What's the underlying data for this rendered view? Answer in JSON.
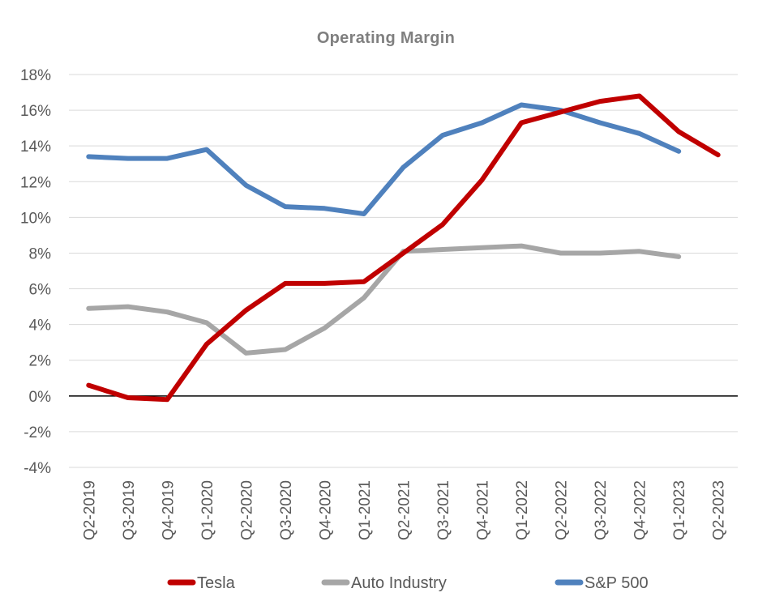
{
  "chart_data": {
    "type": "line",
    "title": "Operating Margin",
    "xlabel": "",
    "ylabel": "",
    "categories": [
      "Q2-2019",
      "Q3-2019",
      "Q4-2019",
      "Q1-2020",
      "Q2-2020",
      "Q3-2020",
      "Q4-2020",
      "Q1-2021",
      "Q2-2021",
      "Q3-2021",
      "Q4-2021",
      "Q1-2022",
      "Q2-2022",
      "Q3-2022",
      "Q4-2022",
      "Q1-2023",
      "Q2-2023"
    ],
    "yticks": [
      "-4%",
      "-2%",
      "0%",
      "2%",
      "4%",
      "6%",
      "8%",
      "10%",
      "12%",
      "14%",
      "16%",
      "18%"
    ],
    "ylim": [
      -4,
      18
    ],
    "grid": true,
    "legend_position": "bottom",
    "series": [
      {
        "name": "Tesla",
        "color": "#c00000",
        "values": [
          0.6,
          -0.1,
          -0.2,
          2.9,
          4.8,
          6.3,
          6.3,
          6.4,
          8.0,
          9.6,
          12.1,
          15.3,
          15.9,
          16.5,
          16.8,
          14.8,
          13.5
        ]
      },
      {
        "name": "Auto Industry",
        "color": "#a6a6a6",
        "values": [
          4.9,
          5.0,
          4.7,
          4.1,
          2.4,
          2.6,
          3.8,
          5.5,
          8.1,
          8.2,
          8.3,
          8.4,
          8.0,
          8.0,
          8.1,
          7.8,
          null
        ]
      },
      {
        "name": "S&P 500",
        "color": "#4f81bd",
        "values": [
          13.4,
          13.3,
          13.3,
          13.8,
          11.8,
          10.6,
          10.5,
          10.2,
          12.8,
          14.6,
          15.3,
          16.3,
          16.0,
          15.3,
          14.7,
          13.7,
          null
        ]
      }
    ]
  }
}
